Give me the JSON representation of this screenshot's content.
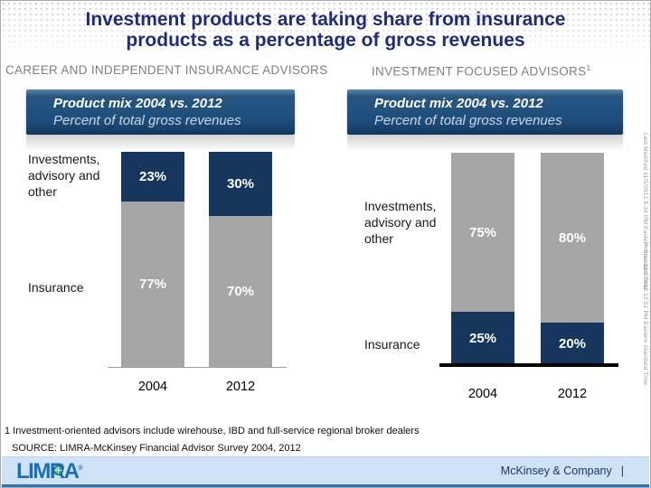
{
  "title": {
    "line1": "Investment products are taking share from insurance",
    "line2": "products as a percentage of gross revenues"
  },
  "chart_data": [
    {
      "type": "bar",
      "stacked": true,
      "section": "CAREER AND INDEPENDENT INSURANCE ADVISORS",
      "section_sup": "",
      "title": "Product mix 2004 vs. 2012",
      "subtitle": "Percent of total gross revenues",
      "categories": [
        "2004",
        "2012"
      ],
      "series": [
        {
          "name": "Investments, advisory and other",
          "values": [
            23,
            30
          ],
          "color": "#17365d"
        },
        {
          "name": "Insurance",
          "values": [
            77,
            70
          ],
          "color": "#a6a6a6"
        }
      ],
      "unit": "%",
      "ylim": [
        0,
        100
      ],
      "baseline_style": "thin-gray"
    },
    {
      "type": "bar",
      "stacked": true,
      "section": "INVESTMENT FOCUSED ADVISORS",
      "section_sup": "1",
      "title": "Product mix 2004 vs. 2012",
      "subtitle": "Percent of total gross revenues",
      "categories": [
        "2004",
        "2012"
      ],
      "series": [
        {
          "name": "Investments, advisory and other",
          "values": [
            75,
            80
          ],
          "color": "#a6a6a6"
        },
        {
          "name": "Insurance",
          "values": [
            25,
            20
          ],
          "color": "#17365d"
        }
      ],
      "unit": "%",
      "ylim": [
        0,
        100
      ],
      "baseline_style": "thick-black"
    }
  ],
  "footnote": "1 Investment-oriented advisors include wirehouse, IBD and full-service regional broker dealers",
  "source": "SOURCE: LIMRA-McKinsey Financial Advisor Survey 2004, 2012",
  "margin_notes": {
    "last_modified": "Last Modified 11/5/2012 5:34 PM Eastern Standard Time",
    "printed": "Printed 11/3/2012 12:51 PM Eastern Standard Time"
  },
  "footer": {
    "logo_text": "LIMRA",
    "logo_registered": "®",
    "company": "McKinsey & Company",
    "divider": "|"
  },
  "colors": {
    "navy_segment": "#17365d",
    "gray_segment": "#a6a6a6",
    "title_text": "#1f2d78",
    "header_box": "#1e4e7e",
    "footer_bar": "#cfe2f6",
    "footer_line": "#2f74b5"
  }
}
